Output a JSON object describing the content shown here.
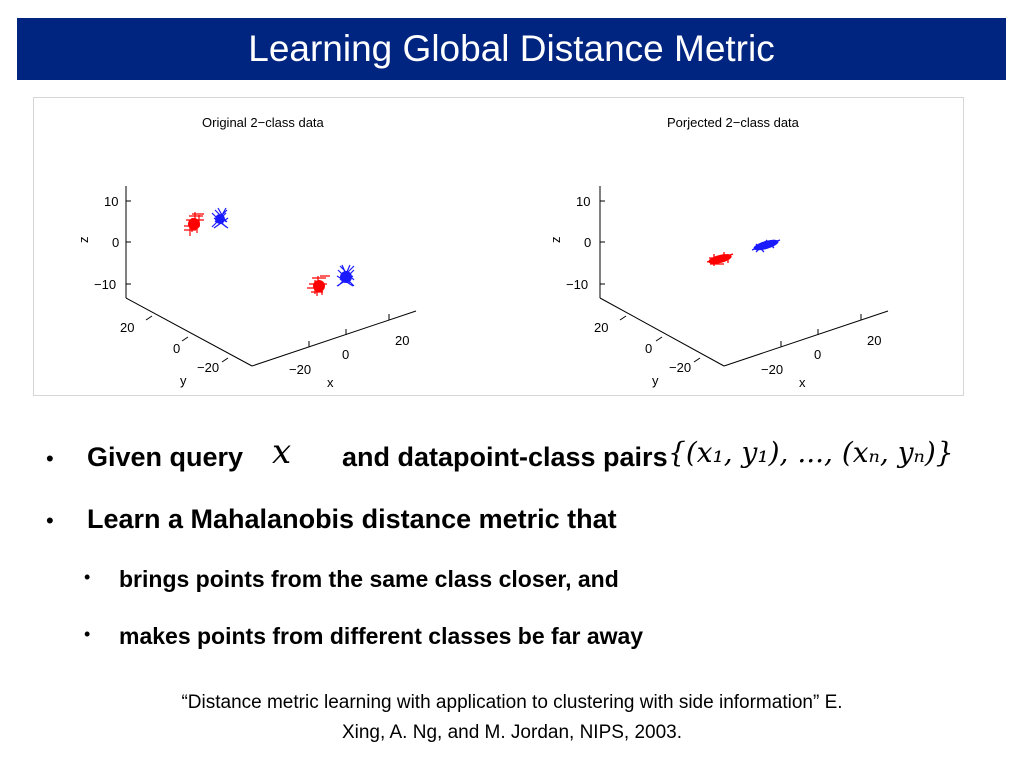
{
  "slide": {
    "title": "Learning Global Distance Metric",
    "bullets": {
      "b1_pre": "Given query",
      "b1_x": "x",
      "b1_mid": "and  datapoint-class pairs",
      "b1_pairs": "{(x₁, y₁), ..., (xₙ, yₙ)}",
      "b2": "Learn a Mahalanobis distance metric that",
      "sub1": "brings points from the same class closer, and",
      "sub2": "makes points from different classes be far away"
    },
    "citation_line1": "“Distance metric learning with application to clustering with side information” E.",
    "citation_line2": "Xing, A. Ng, and M. Jordan, NIPS, 2003.",
    "bullet_glyph": "•"
  },
  "figures": [
    {
      "title": "Original 2−class data",
      "z_ticks": [
        "10",
        "0",
        "−10"
      ],
      "y_ticks": [
        "20",
        "0",
        "−20"
      ],
      "x_ticks": [
        "−20",
        "0",
        "20"
      ],
      "z_label": "z",
      "y_label": "y",
      "x_label": "x",
      "colors": {
        "class_a": "#ff0000",
        "class_b": "#1a1aff"
      }
    },
    {
      "title": "Porjected 2−class data",
      "z_ticks": [
        "10",
        "0",
        "−10"
      ],
      "y_ticks": [
        "20",
        "0",
        "−20"
      ],
      "x_ticks": [
        "−20",
        "0",
        "20"
      ],
      "z_label": "z",
      "y_label": "y",
      "x_label": "x",
      "colors": {
        "class_a": "#ff0000",
        "class_b": "#1a1aff"
      }
    }
  ]
}
